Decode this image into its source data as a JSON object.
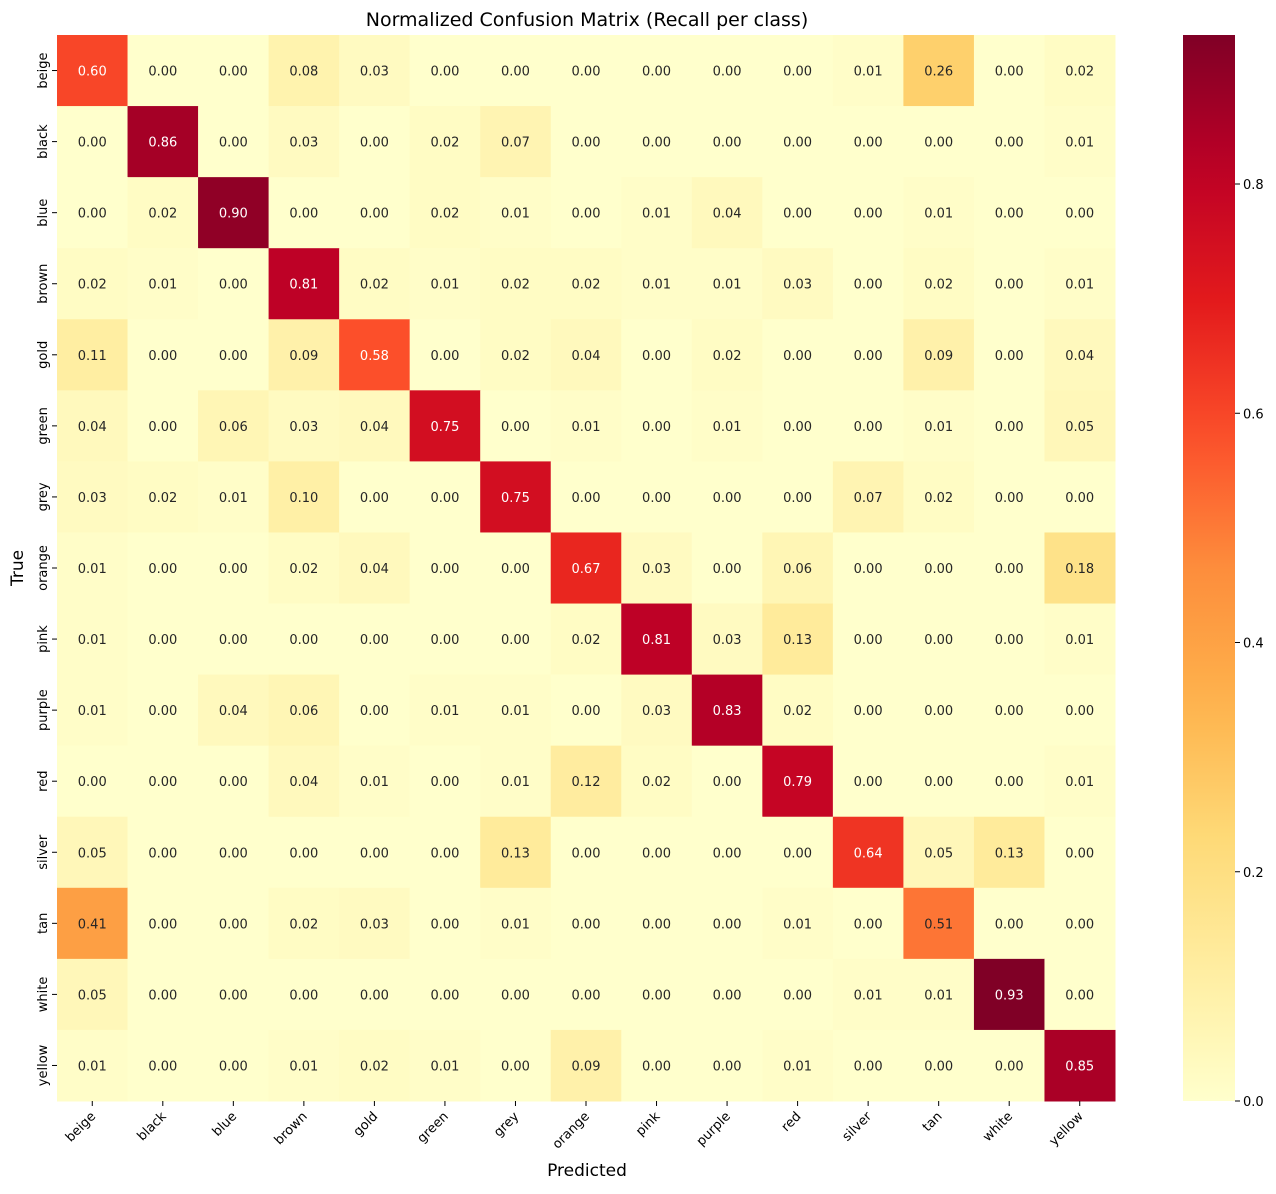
{
  "chart_data": {
    "type": "heatmap",
    "title": "Normalized Confusion Matrix (Recall per class)",
    "xlabel": "Predicted",
    "ylabel": "True",
    "x_categories": [
      "beige",
      "black",
      "blue",
      "brown",
      "gold",
      "green",
      "grey",
      "orange",
      "pink",
      "purple",
      "red",
      "silver",
      "tan",
      "white",
      "yellow"
    ],
    "y_categories": [
      "beige",
      "black",
      "blue",
      "brown",
      "gold",
      "green",
      "grey",
      "orange",
      "pink",
      "purple",
      "red",
      "silver",
      "tan",
      "white",
      "yellow"
    ],
    "values": [
      [
        0.6,
        0.0,
        0.0,
        0.08,
        0.03,
        0.0,
        0.0,
        0.0,
        0.0,
        0.0,
        0.0,
        0.01,
        0.26,
        0.0,
        0.02
      ],
      [
        0.0,
        0.86,
        0.0,
        0.03,
        0.0,
        0.02,
        0.07,
        0.0,
        0.0,
        0.0,
        0.0,
        0.0,
        0.0,
        0.0,
        0.01
      ],
      [
        0.0,
        0.02,
        0.9,
        0.0,
        0.0,
        0.02,
        0.01,
        0.0,
        0.01,
        0.04,
        0.0,
        0.0,
        0.01,
        0.0,
        0.0
      ],
      [
        0.02,
        0.01,
        0.0,
        0.81,
        0.02,
        0.01,
        0.02,
        0.02,
        0.01,
        0.01,
        0.03,
        0.0,
        0.02,
        0.0,
        0.01
      ],
      [
        0.11,
        0.0,
        0.0,
        0.09,
        0.58,
        0.0,
        0.02,
        0.04,
        0.0,
        0.02,
        0.0,
        0.0,
        0.09,
        0.0,
        0.04
      ],
      [
        0.04,
        0.0,
        0.06,
        0.03,
        0.04,
        0.75,
        0.0,
        0.01,
        0.0,
        0.01,
        0.0,
        0.0,
        0.01,
        0.0,
        0.05
      ],
      [
        0.03,
        0.02,
        0.01,
        0.1,
        0.0,
        0.0,
        0.75,
        0.0,
        0.0,
        0.0,
        0.0,
        0.07,
        0.02,
        0.0,
        0.0
      ],
      [
        0.01,
        0.0,
        0.0,
        0.02,
        0.04,
        0.0,
        0.0,
        0.67,
        0.03,
        0.0,
        0.06,
        0.0,
        0.0,
        0.0,
        0.18
      ],
      [
        0.01,
        0.0,
        0.0,
        0.0,
        0.0,
        0.0,
        0.0,
        0.02,
        0.81,
        0.03,
        0.13,
        0.0,
        0.0,
        0.0,
        0.01
      ],
      [
        0.01,
        0.0,
        0.04,
        0.06,
        0.0,
        0.01,
        0.01,
        0.0,
        0.03,
        0.83,
        0.02,
        0.0,
        0.0,
        0.0,
        0.0
      ],
      [
        0.0,
        0.0,
        0.0,
        0.04,
        0.01,
        0.0,
        0.01,
        0.12,
        0.02,
        0.0,
        0.79,
        0.0,
        0.0,
        0.0,
        0.01
      ],
      [
        0.05,
        0.0,
        0.0,
        0.0,
        0.0,
        0.0,
        0.13,
        0.0,
        0.0,
        0.0,
        0.0,
        0.64,
        0.05,
        0.13,
        0.0
      ],
      [
        0.41,
        0.0,
        0.0,
        0.02,
        0.03,
        0.0,
        0.01,
        0.0,
        0.0,
        0.0,
        0.01,
        0.0,
        0.51,
        0.0,
        0.0
      ],
      [
        0.05,
        0.0,
        0.0,
        0.0,
        0.0,
        0.0,
        0.0,
        0.0,
        0.0,
        0.0,
        0.0,
        0.01,
        0.01,
        0.93,
        0.0
      ],
      [
        0.01,
        0.0,
        0.0,
        0.01,
        0.02,
        0.01,
        0.0,
        0.09,
        0.0,
        0.0,
        0.01,
        0.0,
        0.0,
        0.0,
        0.85
      ]
    ],
    "colormap": "YlOrRd",
    "colorbar": {
      "range": [
        0.0,
        0.93
      ],
      "ticks": [
        0.0,
        0.2,
        0.4,
        0.6,
        0.8
      ],
      "tick_labels": [
        "0.0",
        "0.2",
        "0.4",
        "0.6",
        "0.8"
      ]
    },
    "grid": false,
    "legend": "colorbar-right"
  }
}
